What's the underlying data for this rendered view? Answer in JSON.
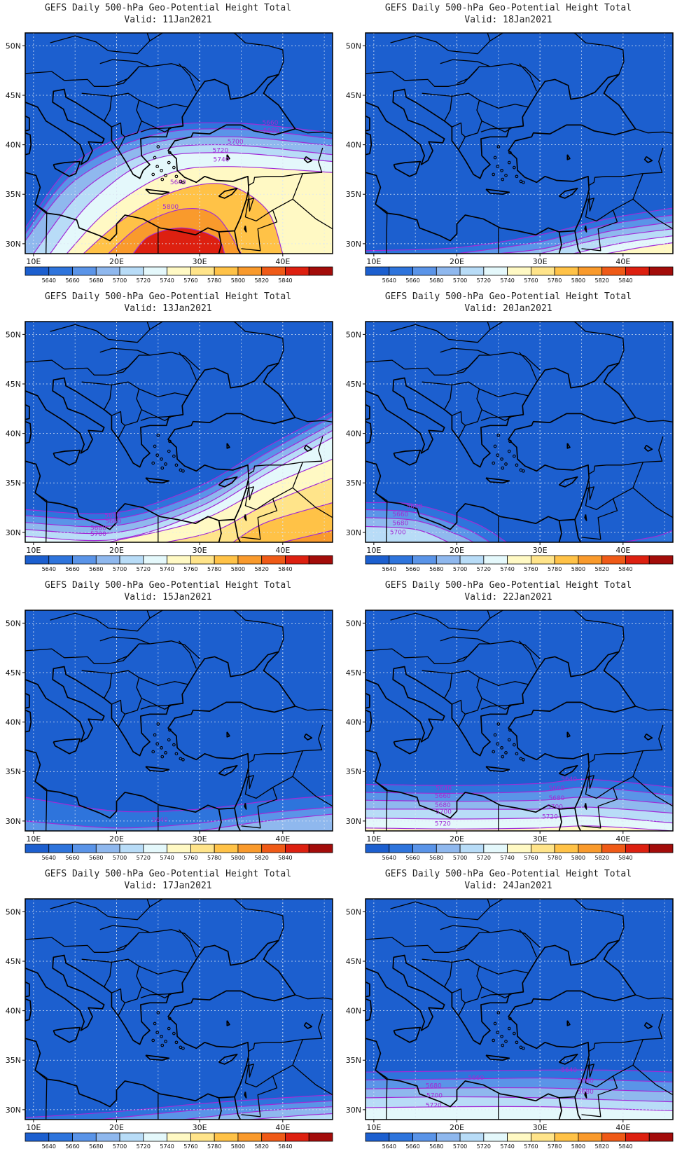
{
  "panel_title": "GEFS Daily 500-hPa Geo-Potential Height Total",
  "valid_prefix": "Valid:",
  "lat_labels": [
    "50N",
    "45N",
    "40N",
    "35N",
    "30N"
  ],
  "lon_labels": [
    "10E",
    "20E",
    "30E",
    "40E"
  ],
  "colorbar": {
    "levels": [
      "5640",
      "5660",
      "5680",
      "5700",
      "5720",
      "5740",
      "5760",
      "5780",
      "5800",
      "5820",
      "5840"
    ],
    "colors": [
      "#1c5fcf",
      "#2e74dc",
      "#5a94e8",
      "#8fb8ee",
      "#b8dcf7",
      "#e4f8fb",
      "#fff9c4",
      "#ffe48a",
      "#ffc247",
      "#f99a2c",
      "#ef5a17",
      "#dd2010",
      "#a30c0a"
    ]
  },
  "contour_color": "#a12bd6",
  "land_color": "#1c5fcf",
  "panels": [
    {
      "valid": "11Jan2021",
      "labels": [
        {
          "t": "5640",
          "lon": 27.4,
          "lat": 36.2
        },
        {
          "t": "5660",
          "lon": 38.5,
          "lat": 42.2
        },
        {
          "t": "5680",
          "lon": 38.6,
          "lat": 41.4
        },
        {
          "t": "5700",
          "lon": 34.3,
          "lat": 40.3
        },
        {
          "t": "5720",
          "lon": 32.5,
          "lat": 39.4
        },
        {
          "t": "5740",
          "lon": 32.6,
          "lat": 38.5
        },
        {
          "t": "5800",
          "lon": 26.5,
          "lat": 33.7
        }
      ]
    },
    {
      "valid": "18Jan2021",
      "labels": []
    },
    {
      "valid": "13Jan2021",
      "labels": [
        {
          "t": "5640",
          "lon": 19.5,
          "lat": 31.7
        },
        {
          "t": "5660",
          "lon": 19.6,
          "lat": 31.1
        },
        {
          "t": "5680",
          "lon": 17.8,
          "lat": 30.4
        },
        {
          "t": "5700",
          "lon": 17.8,
          "lat": 29.8
        }
      ]
    },
    {
      "valid": "20Jan2021",
      "labels": [
        {
          "t": "5640",
          "lon": 14.9,
          "lat": 32.6
        },
        {
          "t": "5660",
          "lon": 13.2,
          "lat": 31.8
        },
        {
          "t": "5680",
          "lon": 13.2,
          "lat": 30.9
        },
        {
          "t": "5700",
          "lon": 12.9,
          "lat": 30.0
        }
      ]
    },
    {
      "valid": "15Jan2021",
      "labels": [
        {
          "t": "5640",
          "lon": 25.2,
          "lat": 30.1
        }
      ]
    },
    {
      "valid": "22Jan2021",
      "labels": [
        {
          "t": "5640",
          "lon": 18.4,
          "lat": 33.3
        },
        {
          "t": "5660",
          "lon": 18.3,
          "lat": 32.5
        },
        {
          "t": "5680",
          "lon": 18.3,
          "lat": 31.6
        },
        {
          "t": "5700",
          "lon": 18.4,
          "lat": 30.9
        },
        {
          "t": "5720",
          "lon": 18.3,
          "lat": 29.7
        },
        {
          "t": "5640",
          "lon": 33.5,
          "lat": 34.2
        },
        {
          "t": "5660",
          "lon": 32.0,
          "lat": 33.3
        },
        {
          "t": "5680",
          "lon": 32.0,
          "lat": 32.3
        },
        {
          "t": "5700",
          "lon": 31.8,
          "lat": 31.4
        },
        {
          "t": "5720",
          "lon": 31.2,
          "lat": 30.4
        }
      ]
    },
    {
      "valid": "17Jan2021",
      "labels": []
    },
    {
      "valid": "24Jan2021",
      "labels": [
        {
          "t": "5640",
          "lon": 33.5,
          "lat": 34.0
        },
        {
          "t": "5660",
          "lon": 22.3,
          "lat": 33.2
        },
        {
          "t": "5660",
          "lon": 35.5,
          "lat": 32.9
        },
        {
          "t": "5680",
          "lon": 17.2,
          "lat": 32.4
        },
        {
          "t": "5680",
          "lon": 35.5,
          "lat": 31.8
        },
        {
          "t": "5700",
          "lon": 17.3,
          "lat": 31.4
        },
        {
          "t": "5720",
          "lon": 17.2,
          "lat": 30.4
        }
      ]
    }
  ]
}
